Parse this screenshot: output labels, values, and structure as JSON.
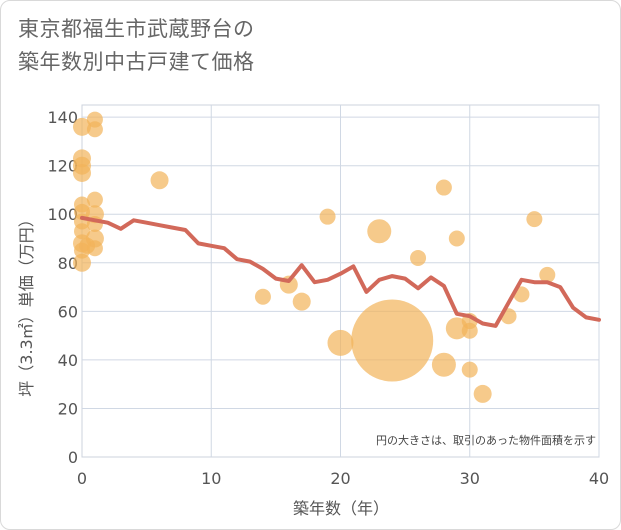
{
  "chart_data": {
    "type": "scatter",
    "title_lines": [
      "東京都福生市武蔵野台の",
      "築年数別中古戸建て価格"
    ],
    "xlabel": "築年数（年）",
    "ylabel": "坪（3.3㎡）単価（万円）",
    "xlim": [
      0,
      40
    ],
    "ylim": [
      0,
      145
    ],
    "x_ticks": [
      "0",
      "10",
      "20",
      "30",
      "40"
    ],
    "y_ticks": [
      "0",
      "20",
      "40",
      "60",
      "80",
      "100",
      "120",
      "140"
    ],
    "x_tick_values": [
      0,
      10,
      20,
      30,
      40
    ],
    "y_tick_values": [
      0,
      20,
      40,
      60,
      80,
      100,
      120,
      140
    ],
    "note": "円の大きさは、取引のあった物件面積を示す",
    "colors": {
      "points": "#f2b35a",
      "line": "#d2695a",
      "grid": "#d0d8e4"
    },
    "scatter_points": [
      {
        "x": 0,
        "y": 136,
        "size": 9
      },
      {
        "x": 0,
        "y": 123,
        "size": 9
      },
      {
        "x": 0,
        "y": 120,
        "size": 9
      },
      {
        "x": 0,
        "y": 117,
        "size": 9
      },
      {
        "x": 0,
        "y": 104,
        "size": 8
      },
      {
        "x": 0,
        "y": 101,
        "size": 8
      },
      {
        "x": 0,
        "y": 97,
        "size": 8
      },
      {
        "x": 0,
        "y": 93,
        "size": 8
      },
      {
        "x": 0,
        "y": 88,
        "size": 9
      },
      {
        "x": 0,
        "y": 80,
        "size": 9
      },
      {
        "x": 0,
        "y": 85,
        "size": 8
      },
      {
        "x": 0.4,
        "y": 87,
        "size": 8
      },
      {
        "x": 1,
        "y": 139,
        "size": 8
      },
      {
        "x": 1,
        "y": 135,
        "size": 8
      },
      {
        "x": 1,
        "y": 106,
        "size": 8
      },
      {
        "x": 1,
        "y": 100,
        "size": 9
      },
      {
        "x": 1,
        "y": 96,
        "size": 8
      },
      {
        "x": 1,
        "y": 90,
        "size": 9
      },
      {
        "x": 1,
        "y": 86,
        "size": 8
      },
      {
        "x": 6,
        "y": 114,
        "size": 9
      },
      {
        "x": 14,
        "y": 66,
        "size": 8
      },
      {
        "x": 16,
        "y": 71,
        "size": 9
      },
      {
        "x": 17,
        "y": 64,
        "size": 9
      },
      {
        "x": 19,
        "y": 99,
        "size": 8
      },
      {
        "x": 20,
        "y": 47,
        "size": 13
      },
      {
        "x": 23,
        "y": 93,
        "size": 12
      },
      {
        "x": 24,
        "y": 48,
        "size": 41
      },
      {
        "x": 26,
        "y": 82,
        "size": 8
      },
      {
        "x": 28,
        "y": 111,
        "size": 8
      },
      {
        "x": 28,
        "y": 38,
        "size": 12
      },
      {
        "x": 29,
        "y": 90,
        "size": 8
      },
      {
        "x": 29,
        "y": 53,
        "size": 11
      },
      {
        "x": 30,
        "y": 56,
        "size": 8
      },
      {
        "x": 30,
        "y": 52,
        "size": 8
      },
      {
        "x": 30,
        "y": 36,
        "size": 8
      },
      {
        "x": 31,
        "y": 26,
        "size": 9
      },
      {
        "x": 33,
        "y": 58,
        "size": 8
      },
      {
        "x": 34,
        "y": 67,
        "size": 8
      },
      {
        "x": 35,
        "y": 98,
        "size": 8
      },
      {
        "x": 36,
        "y": 75,
        "size": 8
      }
    ],
    "trend_line": {
      "x": [
        0,
        1,
        2,
        3,
        4,
        5,
        6,
        7,
        8,
        9,
        10,
        11,
        12,
        13,
        14,
        15,
        16,
        17,
        18,
        19,
        20,
        21,
        22,
        23,
        24,
        25,
        26,
        27,
        28,
        29,
        30,
        31,
        32,
        33,
        34,
        35,
        36,
        37,
        38,
        39,
        40
      ],
      "y": [
        98.5,
        97.5,
        96.5,
        94,
        97.5,
        96.5,
        95.5,
        94.5,
        93.5,
        88,
        87,
        86,
        81.5,
        80.5,
        77.5,
        73.5,
        72.5,
        79,
        72,
        73,
        75.5,
        78.5,
        68,
        73,
        74.5,
        73.5,
        69.5,
        74,
        70.5,
        59,
        58,
        55,
        54,
        63.5,
        73,
        72,
        72,
        70,
        61.5,
        57.5,
        56.5
      ]
    }
  }
}
